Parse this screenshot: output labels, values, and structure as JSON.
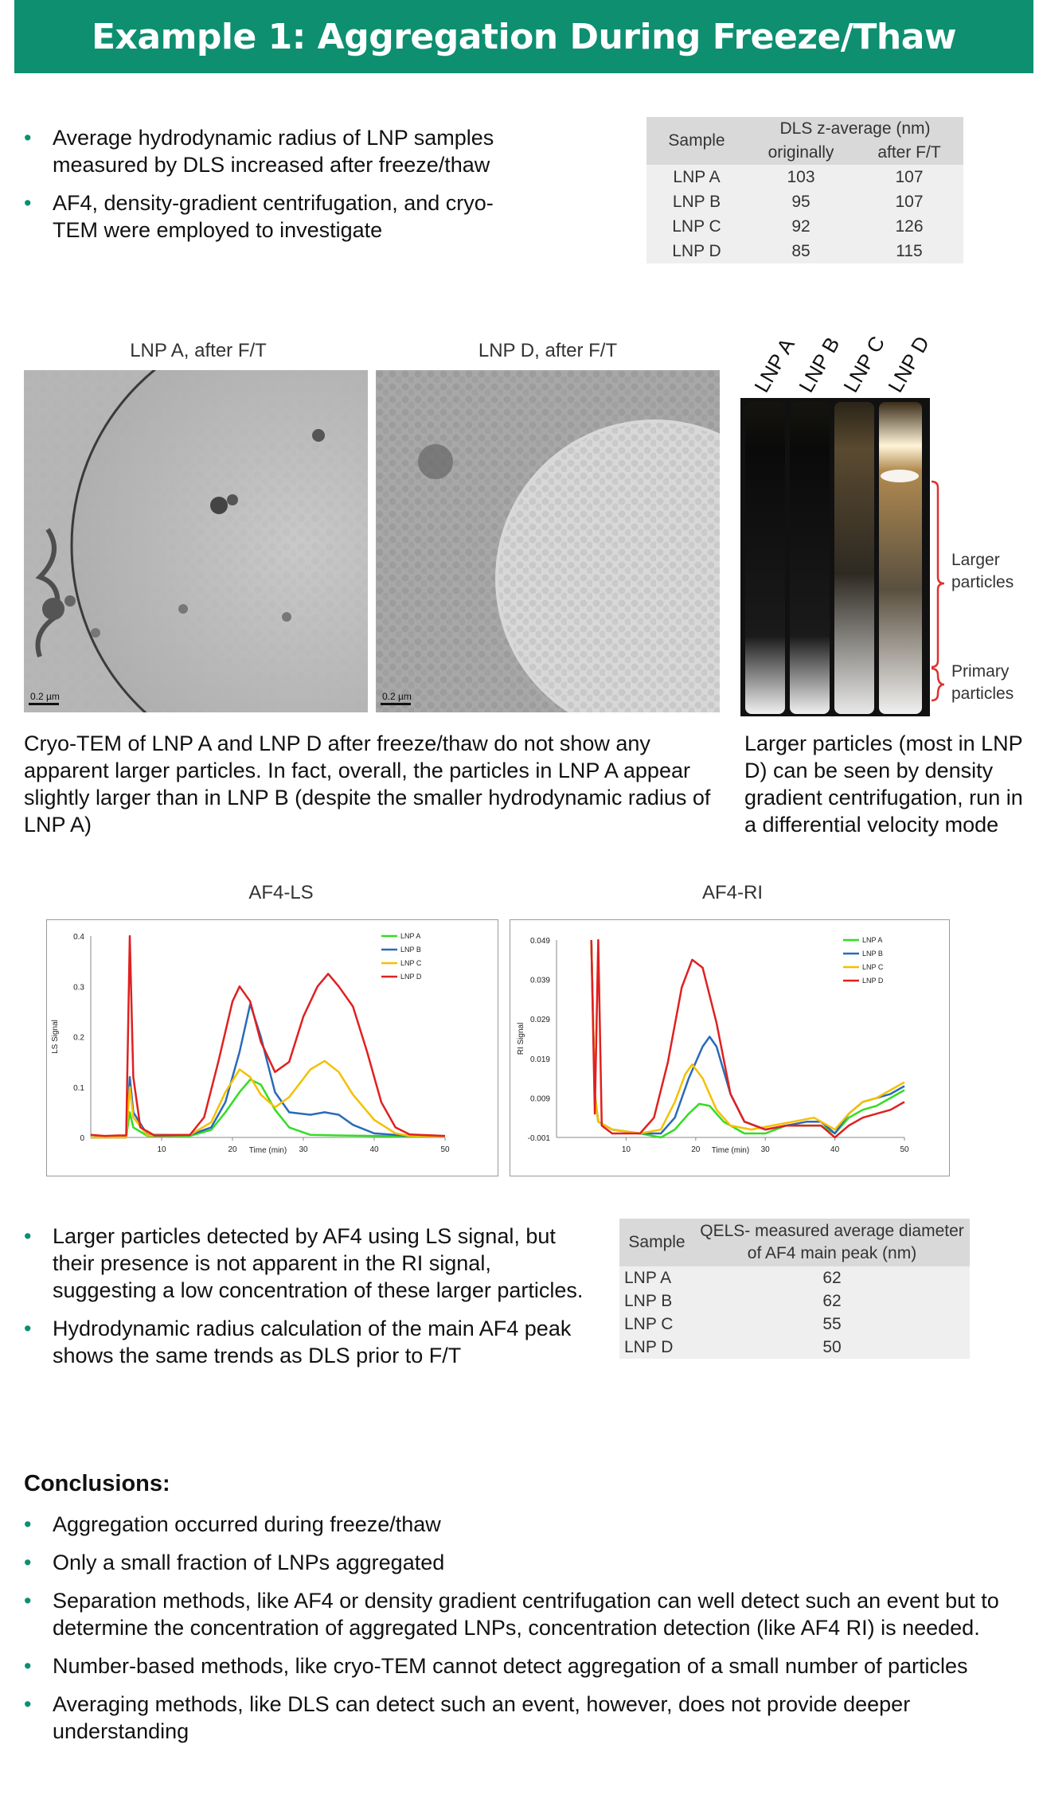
{
  "title": "Example 1: Aggregation During Freeze/Thaw",
  "intro_bullets": [
    "Average hydrodynamic radius of LNP samples measured by DLS increased after freeze/thaw",
    "AF4, density-gradient centrifugation, and cryo-TEM were employed to investigate"
  ],
  "dls_table": {
    "col_sample": "Sample",
    "col_group": "DLS z-average (nm)",
    "col_orig": "originally",
    "col_after": "after F/T",
    "rows": [
      {
        "sample": "LNP A",
        "orig": "103",
        "after": "107"
      },
      {
        "sample": "LNP B",
        "orig": "95",
        "after": "107"
      },
      {
        "sample": "LNP C",
        "orig": "92",
        "after": "126"
      },
      {
        "sample": "LNP D",
        "orig": "85",
        "after": "115"
      }
    ]
  },
  "tem": {
    "label_a": "LNP A, after F/T",
    "label_d": "LNP D, after F/T",
    "scale": "0.2 µm",
    "caption": "Cryo-TEM of LNP A and LNP D after freeze/thaw do not show any apparent larger particles. In fact, overall, the particles in LNP A appear slightly larger than in LNP B  (despite the smaller hydrodynamic radius of LNP A)"
  },
  "tubes": {
    "labels": [
      "LNP A",
      "LNP B",
      "LNP C",
      "LNP D"
    ],
    "larger": "Larger particles",
    "primary": "Primary particles",
    "caption": "Larger particles (most in LNP D) can be seen by density gradient centrifugation, run in a differential velocity mode"
  },
  "colors": {
    "brand": "#0d8f70",
    "lnp_a": "#33dd22",
    "lnp_b": "#2a6ab8",
    "lnp_c": "#f5c000",
    "lnp_d": "#e02020",
    "bracket": "#e03030"
  },
  "chart_data": [
    {
      "type": "line",
      "title": "AF4-LS",
      "xlabel": "Time (min)",
      "ylabel": "LS Signal",
      "xlim": [
        0,
        50
      ],
      "ylim": [
        0,
        0.4
      ],
      "xticks": [
        "10",
        "20",
        "30",
        "40",
        "50"
      ],
      "yticks": [
        "0",
        "0.1",
        "0.2",
        "0.3",
        "0.4"
      ],
      "legend_position": "top-right",
      "series": [
        {
          "name": "LNP A",
          "color": "#33dd22",
          "points": [
            [
              0,
              0
            ],
            [
              5,
              0
            ],
            [
              5.5,
              0.05
            ],
            [
              6,
              0.02
            ],
            [
              8,
              0.003
            ],
            [
              14,
              0.003
            ],
            [
              17,
              0.015
            ],
            [
              19,
              0.05
            ],
            [
              21,
              0.09
            ],
            [
              22.5,
              0.115
            ],
            [
              24,
              0.105
            ],
            [
              26,
              0.055
            ],
            [
              28,
              0.02
            ],
            [
              31,
              0.005
            ],
            [
              35,
              0.004
            ],
            [
              40,
              0.003
            ],
            [
              45,
              0.002
            ],
            [
              50,
              0.002
            ]
          ]
        },
        {
          "name": "LNP B",
          "color": "#2a6ab8",
          "points": [
            [
              0,
              0
            ],
            [
              5,
              0
            ],
            [
              5.5,
              0.12
            ],
            [
              6,
              0.05
            ],
            [
              8,
              0.005
            ],
            [
              14,
              0.005
            ],
            [
              17,
              0.02
            ],
            [
              19,
              0.07
            ],
            [
              21,
              0.17
            ],
            [
              22.5,
              0.265
            ],
            [
              24,
              0.2
            ],
            [
              26,
              0.09
            ],
            [
              28,
              0.05
            ],
            [
              31,
              0.045
            ],
            [
              33,
              0.05
            ],
            [
              35,
              0.045
            ],
            [
              37,
              0.025
            ],
            [
              40,
              0.008
            ],
            [
              45,
              0.003
            ],
            [
              50,
              0.002
            ]
          ]
        },
        {
          "name": "LNP C",
          "color": "#f5c000",
          "points": [
            [
              0,
              0
            ],
            [
              5,
              0
            ],
            [
              5.5,
              0.1
            ],
            [
              6,
              0.04
            ],
            [
              8,
              0.004
            ],
            [
              14,
              0.005
            ],
            [
              17,
              0.03
            ],
            [
              19,
              0.09
            ],
            [
              21,
              0.135
            ],
            [
              22.5,
              0.12
            ],
            [
              24,
              0.085
            ],
            [
              26,
              0.06
            ],
            [
              28,
              0.08
            ],
            [
              31,
              0.135
            ],
            [
              33,
              0.152
            ],
            [
              35,
              0.13
            ],
            [
              37,
              0.085
            ],
            [
              40,
              0.035
            ],
            [
              43,
              0.008
            ],
            [
              45,
              0.003
            ],
            [
              50,
              0.002
            ]
          ]
        },
        {
          "name": "LNP D",
          "color": "#e02020",
          "points": [
            [
              0,
              0.005
            ],
            [
              2,
              0.003
            ],
            [
              4,
              0.004
            ],
            [
              5,
              0.004
            ],
            [
              5.5,
              0.4
            ],
            [
              6,
              0.12
            ],
            [
              7,
              0.02
            ],
            [
              9,
              0.004
            ],
            [
              14,
              0.005
            ],
            [
              16,
              0.04
            ],
            [
              18,
              0.15
            ],
            [
              20,
              0.27
            ],
            [
              21,
              0.3
            ],
            [
              22.5,
              0.27
            ],
            [
              24,
              0.19
            ],
            [
              26,
              0.13
            ],
            [
              28,
              0.15
            ],
            [
              30,
              0.24
            ],
            [
              32,
              0.3
            ],
            [
              33.5,
              0.325
            ],
            [
              35,
              0.3
            ],
            [
              37,
              0.26
            ],
            [
              39,
              0.17
            ],
            [
              41,
              0.07
            ],
            [
              43,
              0.02
            ],
            [
              45,
              0.006
            ],
            [
              50,
              0.003
            ]
          ]
        }
      ]
    },
    {
      "type": "line",
      "title": "AF4-RI",
      "xlabel": "Time (min)",
      "ylabel": "RI Signal",
      "xlim": [
        0,
        50
      ],
      "ylim": [
        -0.001,
        0.049
      ],
      "xticks": [
        "10",
        "20",
        "30",
        "40",
        "50"
      ],
      "yticks": [
        "-0.001",
        "0.009",
        "0.019",
        "0.029",
        "0.039",
        "0.049"
      ],
      "legend_position": "top-right",
      "series": [
        {
          "name": "LNP A",
          "color": "#33dd22",
          "points": [
            [
              5,
              0.049
            ],
            [
              5.5,
              0.01
            ],
            [
              6,
              0.003
            ],
            [
              8,
              0.001
            ],
            [
              12,
              0
            ],
            [
              15,
              -0.001
            ],
            [
              17,
              0.001
            ],
            [
              19,
              0.005
            ],
            [
              20.5,
              0.0075
            ],
            [
              22,
              0.007
            ],
            [
              24,
              0.003
            ],
            [
              27,
              0
            ],
            [
              30,
              0
            ],
            [
              33,
              0.002
            ],
            [
              36,
              0.002
            ],
            [
              38,
              0.002
            ],
            [
              40,
              0
            ],
            [
              42,
              0.004
            ],
            [
              44,
              0.006
            ],
            [
              46,
              0.007
            ],
            [
              48,
              0.009
            ],
            [
              50,
              0.011
            ]
          ]
        },
        {
          "name": "LNP B",
          "color": "#2a6ab8",
          "points": [
            [
              5,
              0.049
            ],
            [
              5.5,
              0.01
            ],
            [
              6,
              0.003
            ],
            [
              8,
              0.001
            ],
            [
              12,
              0
            ],
            [
              15,
              0
            ],
            [
              17,
              0.004
            ],
            [
              19,
              0.014
            ],
            [
              21,
              0.022
            ],
            [
              22,
              0.0245
            ],
            [
              23,
              0.022
            ],
            [
              25,
              0.01
            ],
            [
              27,
              0.003
            ],
            [
              30,
              0.001
            ],
            [
              33,
              0.002
            ],
            [
              36,
              0.003
            ],
            [
              38,
              0.003
            ],
            [
              40,
              0
            ],
            [
              42,
              0.005
            ],
            [
              44,
              0.008
            ],
            [
              46,
              0.009
            ],
            [
              48,
              0.01
            ],
            [
              50,
              0.012
            ]
          ]
        },
        {
          "name": "LNP C",
          "color": "#f5c000",
          "points": [
            [
              5,
              0.049
            ],
            [
              5.5,
              0.01
            ],
            [
              6,
              0.003
            ],
            [
              8,
              0.001
            ],
            [
              12,
              0
            ],
            [
              15,
              0.001
            ],
            [
              17,
              0.008
            ],
            [
              18.5,
              0.015
            ],
            [
              19.5,
              0.0175
            ],
            [
              21,
              0.014
            ],
            [
              23,
              0.006
            ],
            [
              25,
              0.002
            ],
            [
              28,
              0.001
            ],
            [
              31,
              0.002
            ],
            [
              34,
              0.003
            ],
            [
              37,
              0.004
            ],
            [
              40,
              0.001
            ],
            [
              42,
              0.005
            ],
            [
              44,
              0.008
            ],
            [
              46,
              0.009
            ],
            [
              48,
              0.011
            ],
            [
              50,
              0.013
            ]
          ]
        },
        {
          "name": "LNP D",
          "color": "#e02020",
          "points": [
            [
              5,
              0.049
            ],
            [
              5.5,
              0.005
            ],
            [
              6,
              0.049
            ],
            [
              6.5,
              0.002
            ],
            [
              8,
              0
            ],
            [
              12,
              0
            ],
            [
              14,
              0.004
            ],
            [
              16,
              0.018
            ],
            [
              18,
              0.037
            ],
            [
              19.5,
              0.044
            ],
            [
              21,
              0.042
            ],
            [
              23,
              0.028
            ],
            [
              25,
              0.01
            ],
            [
              27,
              0.003
            ],
            [
              30,
              0.001
            ],
            [
              33,
              0.002
            ],
            [
              36,
              0.002
            ],
            [
              38,
              0.002
            ],
            [
              40,
              -0.001
            ],
            [
              42,
              0.002
            ],
            [
              44,
              0.004
            ],
            [
              46,
              0.005
            ],
            [
              48,
              0.006
            ],
            [
              50,
              0.008
            ]
          ]
        }
      ]
    }
  ],
  "af4_bullets": [
    "Larger particles detected by AF4 using LS signal, but their presence is not apparent in the RI signal, suggesting a low concentration of these larger particles.",
    "Hydrodynamic radius calculation of the main AF4 peak shows the same trends as DLS prior to F/T"
  ],
  "qels_table": {
    "col_sample": "Sample",
    "col_value": "QELS- measured average diameter of AF4 main peak (nm)",
    "rows": [
      {
        "sample": "LNP A",
        "value": "62"
      },
      {
        "sample": "LNP B",
        "value": "62"
      },
      {
        "sample": "LNP C",
        "value": "55"
      },
      {
        "sample": "LNP D",
        "value": "50"
      }
    ]
  },
  "conclusions": {
    "title": "Conclusions:",
    "items": [
      "Aggregation occurred during freeze/thaw",
      "Only a small fraction of LNPs aggregated",
      "Separation methods, like AF4 or density gradient centrifugation can well detect such an event but to determine the concentration of aggregated LNPs, concentration detection (like AF4 RI) is needed.",
      "Number-based methods, like cryo-TEM cannot detect aggregation of a small number of particles",
      "Averaging methods, like DLS can detect such an event, however, does not provide deeper understanding"
    ]
  }
}
